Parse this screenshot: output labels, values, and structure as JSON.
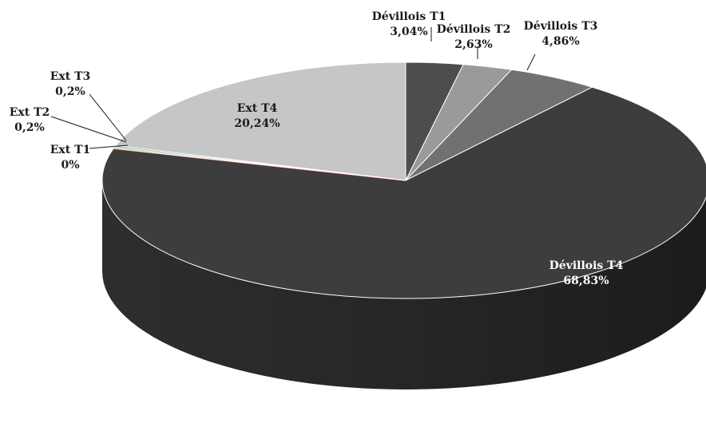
{
  "chart_data": {
    "type": "pie",
    "style": "3d",
    "title": "",
    "legend": "none",
    "slices": [
      {
        "name": "Dévillois T1",
        "value": 3.04,
        "label": "3,04%",
        "color": "#4d4d4d"
      },
      {
        "name": "Dévillois T2",
        "value": 2.63,
        "label": "2,63%",
        "color": "#9a9a9a"
      },
      {
        "name": "Dévillois T3",
        "value": 4.86,
        "label": "4,86%",
        "color": "#717171"
      },
      {
        "name": "Dévillois T4",
        "value": 68.83,
        "label": "68,83%",
        "color": "#3d3d3d"
      },
      {
        "name": "Ext T1",
        "value": 0,
        "label": "0%",
        "color": "#d9534f"
      },
      {
        "name": "Ext T2",
        "value": 0.2,
        "label": "0,2%",
        "color": "#8cc63f"
      },
      {
        "name": "Ext T3",
        "value": 0.2,
        "label": "0,2%",
        "color": "#4aa3c7"
      },
      {
        "name": "Ext T4",
        "value": 20.24,
        "label": "20,24%",
        "color": "#c6c6c6"
      }
    ]
  }
}
